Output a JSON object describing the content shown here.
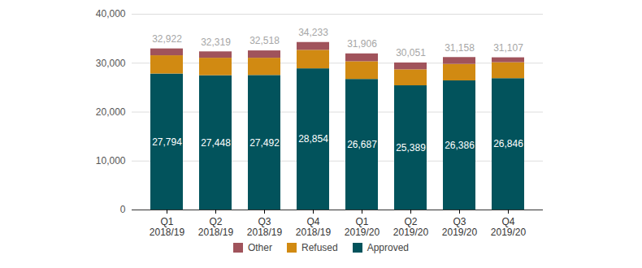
{
  "chart_data": {
    "type": "bar",
    "stacked": true,
    "categories": [
      "Q1 2018/19",
      "Q2 2018/19",
      "Q3 2018/19",
      "Q4 2018/19",
      "Q1 2019/20",
      "Q2 2019/20",
      "Q3 2019/20",
      "Q4 2019/20"
    ],
    "series": [
      {
        "name": "Approved",
        "color": "#02535c",
        "values": [
          27794,
          27448,
          27492,
          28854,
          26687,
          25389,
          26386,
          26846
        ],
        "value_labels": [
          "27,794",
          "27,448",
          "27,492",
          "28,854",
          "26,687",
          "25,389",
          "26,386",
          "26,846"
        ],
        "data_labels": true
      },
      {
        "name": "Refused",
        "color": "#d18a12",
        "values": [
          3728,
          3571,
          3526,
          3779,
          3619,
          3262,
          3372,
          3261
        ]
      },
      {
        "name": "Other",
        "color": "#a0535b",
        "values": [
          1400,
          1300,
          1500,
          1600,
          1600,
          1400,
          1400,
          1000
        ]
      }
    ],
    "totals": [
      32922,
      32319,
      32518,
      34233,
      31906,
      30051,
      31158,
      31107
    ],
    "total_labels": [
      "32,922",
      "32,319",
      "32,518",
      "34,233",
      "31,906",
      "30,051",
      "31,158",
      "31,107"
    ],
    "ylim": [
      0,
      40000
    ],
    "yticks": [
      0,
      {
        "value": 10000,
        "label": "10,000"
      },
      {
        "value": 20000,
        "label": "20,000"
      },
      {
        "value": 30000,
        "label": "30,000"
      },
      {
        "value": 40000,
        "label": "40,000"
      }
    ],
    "grid": true,
    "legend": "bottom"
  }
}
